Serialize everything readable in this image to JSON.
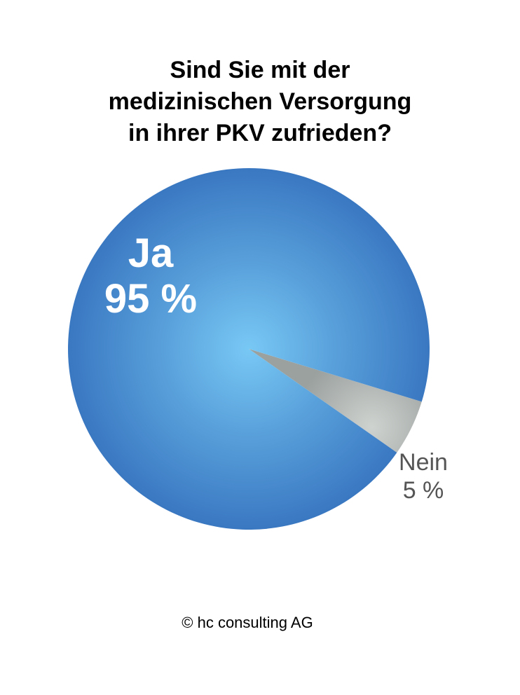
{
  "title_lines": [
    "Sind Sie mit der",
    "medizinischen Versorgung",
    "in ihrer PKV zufrieden?"
  ],
  "chart_data": {
    "type": "pie",
    "title": "Sind Sie mit der medizinischen Versorgung in ihrer PKV zufrieden?",
    "categories": [
      "Ja",
      "Nein"
    ],
    "values": [
      95,
      5
    ],
    "value_labels": [
      "95 %",
      "5 %"
    ],
    "colors": [
      "#3f82c9",
      "#a4aaa8"
    ]
  },
  "footer": {
    "copyright": "© hc consulting AG"
  }
}
